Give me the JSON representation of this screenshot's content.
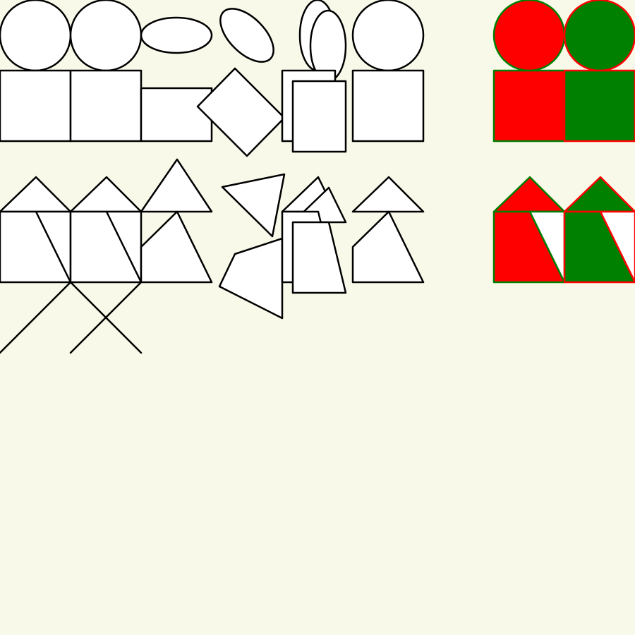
{
  "colors": {
    "background": "#f8f9e8",
    "outline": "#000000",
    "shape_fill": "#ffffff",
    "red": "#ff0000",
    "green": "#008000"
  },
  "diagram": {
    "rows": [
      {
        "name": "shape-row-1",
        "description_free": true,
        "elements": [
          "circle",
          "circle",
          "ellipse",
          "ellipse-tilted",
          "ellipse-pair",
          "circle",
          "circle-red-fill",
          "circle-green-fill",
          "square",
          "square",
          "rectangle-wide",
          "square-rotated",
          "rectangle-pair",
          "square",
          "square-red-fill",
          "square-green-fill"
        ]
      },
      {
        "name": "shape-row-2",
        "elements": [
          "triangle",
          "triangle",
          "triangle-tall",
          "triangle-rotated",
          "triangle-pair",
          "triangle",
          "triangle-red-fill",
          "triangle-green-fill",
          "split-square",
          "split-square",
          "pentagon",
          "pentagon-rotated",
          "trapezoid-pair",
          "pentagon",
          "split-square-red-fill",
          "split-square-green-fill"
        ]
      },
      {
        "name": "line-row",
        "elements": [
          "cross-lines",
          "cross-lines"
        ]
      }
    ]
  }
}
